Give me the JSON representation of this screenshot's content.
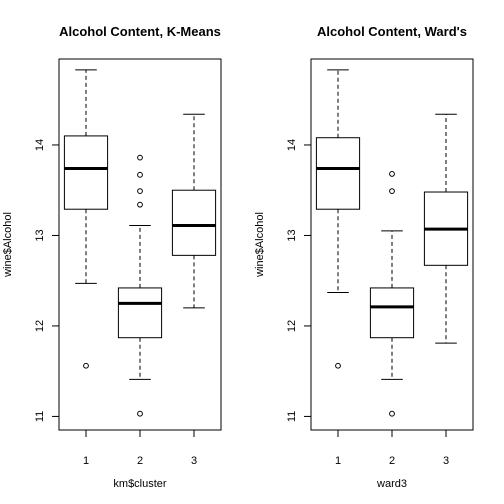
{
  "chart_data": [
    {
      "type": "boxplot",
      "title": "Alcohol Content, K-Means",
      "xlabel": "km$cluster",
      "ylabel": "wine$Alcohol",
      "categories": [
        "1",
        "2",
        "3"
      ],
      "ylim": [
        10.85,
        14.95
      ],
      "yticks": [
        11,
        12,
        13,
        14
      ],
      "boxes": [
        {
          "name": "1",
          "whisker_low": 12.47,
          "q1": 13.29,
          "median": 13.74,
          "q3": 14.1,
          "whisker_high": 14.83,
          "outliers": [
            11.56
          ]
        },
        {
          "name": "2",
          "whisker_low": 11.41,
          "q1": 11.87,
          "median": 12.25,
          "q3": 12.42,
          "whisker_high": 13.11,
          "outliers": [
            11.03,
            13.34,
            13.49,
            13.67,
            13.86
          ]
        },
        {
          "name": "3",
          "whisker_low": 12.2,
          "q1": 12.78,
          "median": 13.11,
          "q3": 13.5,
          "whisker_high": 14.34,
          "outliers": []
        }
      ]
    },
    {
      "type": "boxplot",
      "title": "Alcohol Content, Ward's",
      "xlabel": "ward3",
      "ylabel": "wine$Alcohol",
      "categories": [
        "1",
        "2",
        "3"
      ],
      "ylim": [
        10.85,
        14.95
      ],
      "yticks": [
        11,
        12,
        13,
        14
      ],
      "boxes": [
        {
          "name": "1",
          "whisker_low": 12.37,
          "q1": 13.29,
          "median": 13.74,
          "q3": 14.08,
          "whisker_high": 14.83,
          "outliers": [
            11.56
          ]
        },
        {
          "name": "2",
          "whisker_low": 11.41,
          "q1": 11.87,
          "median": 12.21,
          "q3": 12.42,
          "whisker_high": 13.05,
          "outliers": [
            11.03,
            13.49,
            13.68
          ]
        },
        {
          "name": "3",
          "whisker_low": 11.81,
          "q1": 12.67,
          "median": 13.07,
          "q3": 13.48,
          "whisker_high": 14.34,
          "outliers": []
        }
      ]
    }
  ]
}
